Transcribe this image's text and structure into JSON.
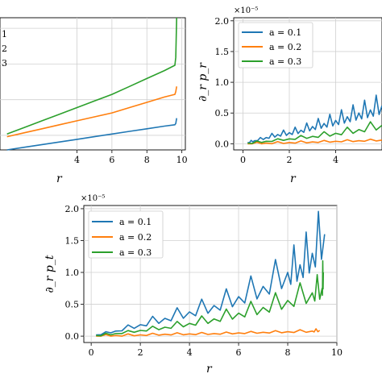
{
  "chart_data": [
    {
      "id": "left",
      "type": "line",
      "xlabel": "r",
      "ylabel": "",
      "xlim": [
        -0.4,
        10.2
      ],
      "ylim": [
        0,
        1
      ],
      "xticks": [
        "4",
        "6",
        "8",
        "10"
      ],
      "xtick_values": [
        4,
        6,
        8,
        10
      ],
      "grid": true,
      "legend": {
        "placement": "top-left",
        "labels": [
          "1",
          "2",
          "3"
        ]
      },
      "series": [
        {
          "color": "#1f77b4",
          "x": [
            0,
            1,
            2,
            3,
            4,
            5,
            6,
            7,
            8,
            9,
            9.6,
            9.65,
            9.7
          ],
          "y": [
            0.0,
            0.02,
            0.04,
            0.06,
            0.08,
            0.1,
            0.12,
            0.14,
            0.16,
            0.18,
            0.19,
            0.2,
            0.24
          ]
        },
        {
          "color": "#ff7f0e",
          "x": [
            0,
            1,
            2,
            3,
            4,
            5,
            6,
            7,
            8,
            9,
            9.6,
            9.65,
            9.7
          ],
          "y": [
            0.1,
            0.13,
            0.16,
            0.19,
            0.22,
            0.25,
            0.28,
            0.32,
            0.36,
            0.4,
            0.42,
            0.44,
            0.48
          ]
        },
        {
          "color": "#2ca02c",
          "x": [
            0,
            1,
            2,
            3,
            4,
            5,
            6,
            7,
            8,
            9,
            9.6,
            9.65,
            9.7
          ],
          "y": [
            0.12,
            0.17,
            0.22,
            0.27,
            0.32,
            0.37,
            0.42,
            0.48,
            0.54,
            0.6,
            0.64,
            0.7,
            1.0
          ]
        }
      ]
    },
    {
      "id": "right",
      "type": "line",
      "xlabel": "r",
      "ylabel": "∂_r p_r",
      "sci_label": "×10⁻⁵",
      "xlim": [
        -0.4,
        6
      ],
      "ylim": [
        -0.1,
        2.05
      ],
      "xticks": [
        "0",
        "2",
        "4"
      ],
      "xtick_values": [
        0,
        2,
        4
      ],
      "yticks": [
        "0.0",
        "0.5",
        "1.0",
        "1.5",
        "2.0"
      ],
      "ytick_values": [
        0,
        0.5,
        1.0,
        1.5,
        2.0
      ],
      "grid": true,
      "legend": {
        "placement": "top-left"
      },
      "series": [
        {
          "name": "a = 0.1",
          "color": "#1f77b4",
          "x": [
            0.2,
            0.5,
            1,
            1.5,
            2,
            2.5,
            3,
            3.5,
            4,
            4.5,
            5,
            5.5,
            6
          ],
          "y": [
            0.02,
            0.05,
            0.1,
            0.15,
            0.18,
            0.22,
            0.28,
            0.33,
            0.38,
            0.44,
            0.5,
            0.55,
            0.62
          ]
        },
        {
          "name": "a = 0.2",
          "color": "#ff7f0e",
          "x": [
            0.2,
            1,
            2,
            3,
            4,
            5,
            6
          ],
          "y": [
            0.0,
            0.01,
            0.02,
            0.03,
            0.04,
            0.05,
            0.06
          ]
        },
        {
          "name": "a = 0.3",
          "color": "#2ca02c",
          "x": [
            0.2,
            1,
            2,
            3,
            4,
            5,
            6
          ],
          "y": [
            0.01,
            0.04,
            0.08,
            0.12,
            0.17,
            0.23,
            0.3
          ]
        }
      ]
    },
    {
      "id": "bottom",
      "type": "line",
      "xlabel": "r",
      "ylabel": "∂_r p_t",
      "sci_label": "×10⁻⁵",
      "xlim": [
        -0.3,
        10
      ],
      "ylim": [
        -0.1,
        2.05
      ],
      "xticks": [
        "0",
        "2",
        "4",
        "6",
        "8",
        "10"
      ],
      "xtick_values": [
        0,
        2,
        4,
        6,
        8,
        10
      ],
      "yticks": [
        "0.0",
        "0.5",
        "1.0",
        "1.5",
        "2.0"
      ],
      "ytick_values": [
        0,
        0.5,
        1.0,
        1.5,
        2.0
      ],
      "grid": true,
      "legend": {
        "placement": "top-left"
      },
      "series": [
        {
          "name": "a = 0.1",
          "color": "#1f77b4",
          "x": [
            0.2,
            1,
            2,
            3,
            4,
            5,
            6,
            7,
            8,
            8.5,
            9,
            9.5
          ],
          "y": [
            0.02,
            0.08,
            0.18,
            0.28,
            0.38,
            0.48,
            0.62,
            0.78,
            1.0,
            1.12,
            1.3,
            1.6
          ]
        },
        {
          "name": "a = 0.2",
          "color": "#ff7f0e",
          "x": [
            0.2,
            1,
            2,
            3,
            4,
            5,
            6,
            7,
            8,
            9,
            9.3
          ],
          "y": [
            0.0,
            0.01,
            0.02,
            0.03,
            0.035,
            0.04,
            0.05,
            0.06,
            0.07,
            0.08,
            0.09
          ]
        },
        {
          "name": "a = 0.3",
          "color": "#2ca02c",
          "x": [
            0.2,
            1,
            2,
            3,
            4,
            5,
            6,
            7,
            8,
            9,
            9.4,
            9.45
          ],
          "y": [
            0.01,
            0.04,
            0.09,
            0.14,
            0.2,
            0.27,
            0.36,
            0.45,
            0.56,
            0.68,
            0.75,
            1.0
          ]
        }
      ]
    }
  ]
}
